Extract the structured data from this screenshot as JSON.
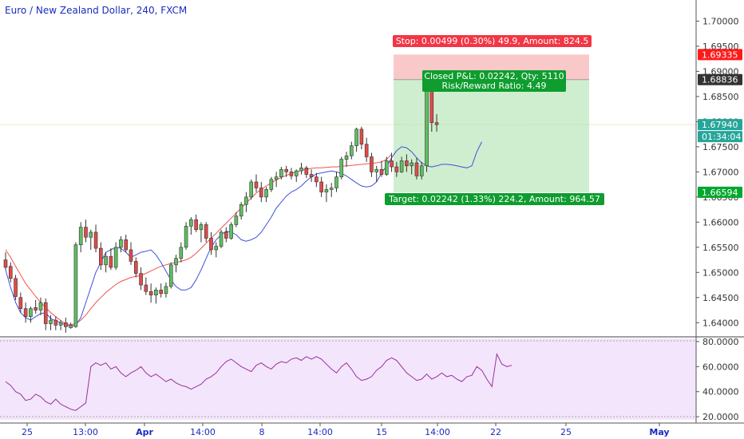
{
  "header": {
    "symbol_title": "Euro / New Zealand Dollar, 240, FXCM"
  },
  "chart_data": {
    "type": "candlestick",
    "price_axis": {
      "range": [
        1.6375,
        1.7042
      ],
      "ticks": [
        "1.70000",
        "1.69500",
        "1.69000",
        "1.68500",
        "1.68000",
        "1.67500",
        "1.67000",
        "1.66500",
        "1.66000",
        "1.65500",
        "1.65000",
        "1.64500",
        "1.64000"
      ],
      "tick_values": [
        1.7,
        1.695,
        1.69,
        1.685,
        1.68,
        1.675,
        1.67,
        1.665,
        1.66,
        1.655,
        1.65,
        1.645,
        1.64
      ]
    },
    "rsi_axis": {
      "range": [
        17.5,
        82.5
      ],
      "ticks": [
        "80.0000",
        "60.0000",
        "40.0000",
        "20.0000"
      ],
      "tick_values": [
        80,
        60,
        40,
        20
      ]
    },
    "time_axis": {
      "labels": [
        "25",
        "13:00",
        "Apr",
        "14:00",
        "8",
        "14:00",
        "15",
        "14:00",
        "22",
        "25",
        "May"
      ],
      "bold": [
        false,
        false,
        true,
        false,
        false,
        false,
        false,
        false,
        false,
        false,
        true
      ]
    },
    "price_labels": [
      {
        "text": "1.69335",
        "value": 1.69335,
        "color": "#ff1a1a"
      },
      {
        "text": "1.68836",
        "value": 1.68836,
        "color": "#333333"
      },
      {
        "text": "1.67940",
        "value": 1.6794,
        "color": "#26a69a"
      },
      {
        "text": "01:34:04",
        "value": 1.6776,
        "color": "#26a69a"
      },
      {
        "text": "1.66594",
        "value": 1.66594,
        "color": "#00a82d"
      }
    ],
    "position": {
      "entry": 1.68836,
      "stop": 1.69335,
      "target": 1.66594,
      "stop_label": "Stop: 0.00499 (0.30%) 49.9, Amount: 824.5",
      "pnl_label": "Closed P&L: 0.02242, Qty: 5110",
      "rr_label": "Risk/Reward Ratio: 4.49",
      "target_label": "Target: 0.02242 (1.33%) 224.2, Amount: 964.57"
    },
    "last_price": 1.6794,
    "candles": [
      [
        1.6525,
        1.654,
        1.6505,
        1.651
      ],
      [
        1.6512,
        1.652,
        1.648,
        1.6488
      ],
      [
        1.6488,
        1.6495,
        1.6445,
        1.6452
      ],
      [
        1.645,
        1.646,
        1.642,
        1.6428
      ],
      [
        1.6428,
        1.644,
        1.64,
        1.6412
      ],
      [
        1.6412,
        1.6432,
        1.64,
        1.6428
      ],
      [
        1.643,
        1.6445,
        1.6418,
        1.6425
      ],
      [
        1.6425,
        1.645,
        1.6415,
        1.644
      ],
      [
        1.644,
        1.6448,
        1.6385,
        1.6398
      ],
      [
        1.6398,
        1.6415,
        1.6385,
        1.6405
      ],
      [
        1.6405,
        1.6412,
        1.6385,
        1.6395
      ],
      [
        1.6395,
        1.6405,
        1.6385,
        1.64
      ],
      [
        1.64,
        1.641,
        1.638,
        1.6392
      ],
      [
        1.639,
        1.64,
        1.6388,
        1.6395
      ],
      [
        1.6392,
        1.656,
        1.639,
        1.6555
      ],
      [
        1.6555,
        1.66,
        1.654,
        1.659
      ],
      [
        1.659,
        1.6605,
        1.656,
        1.657
      ],
      [
        1.657,
        1.6585,
        1.6545,
        1.658
      ],
      [
        1.658,
        1.6595,
        1.654,
        1.6548
      ],
      [
        1.6548,
        1.656,
        1.6505,
        1.6515
      ],
      [
        1.6515,
        1.654,
        1.65,
        1.6532
      ],
      [
        1.6532,
        1.6548,
        1.6505,
        1.651
      ],
      [
        1.651,
        1.656,
        1.6505,
        1.655
      ],
      [
        1.655,
        1.6572,
        1.654,
        1.6565
      ],
      [
        1.6565,
        1.6575,
        1.654,
        1.6545
      ],
      [
        1.6545,
        1.656,
        1.6515,
        1.6522
      ],
      [
        1.6522,
        1.653,
        1.649,
        1.6498
      ],
      [
        1.6498,
        1.651,
        1.6465,
        1.6475
      ],
      [
        1.6475,
        1.649,
        1.6455,
        1.6462
      ],
      [
        1.6462,
        1.6478,
        1.644,
        1.6455
      ],
      [
        1.6455,
        1.647,
        1.6438,
        1.6465
      ],
      [
        1.6465,
        1.6478,
        1.645,
        1.6458
      ],
      [
        1.6458,
        1.648,
        1.645,
        1.6472
      ],
      [
        1.6472,
        1.652,
        1.6468,
        1.6515
      ],
      [
        1.6515,
        1.6535,
        1.65,
        1.6528
      ],
      [
        1.6528,
        1.656,
        1.652,
        1.655
      ],
      [
        1.655,
        1.66,
        1.6545,
        1.6592
      ],
      [
        1.6592,
        1.661,
        1.6575,
        1.6605
      ],
      [
        1.6605,
        1.6615,
        1.658,
        1.6585
      ],
      [
        1.6585,
        1.66,
        1.656,
        1.6595
      ],
      [
        1.6595,
        1.66,
        1.656,
        1.6568
      ],
      [
        1.6568,
        1.658,
        1.6535,
        1.6545
      ],
      [
        1.6545,
        1.656,
        1.653,
        1.6552
      ],
      [
        1.6552,
        1.6585,
        1.6548,
        1.658
      ],
      [
        1.658,
        1.659,
        1.656,
        1.6568
      ],
      [
        1.6568,
        1.66,
        1.6565,
        1.6595
      ],
      [
        1.6595,
        1.662,
        1.659,
        1.6612
      ],
      [
        1.6612,
        1.664,
        1.6605,
        1.6635
      ],
      [
        1.6635,
        1.666,
        1.662,
        1.665
      ],
      [
        1.665,
        1.6685,
        1.6645,
        1.668
      ],
      [
        1.668,
        1.6695,
        1.666,
        1.6668
      ],
      [
        1.6668,
        1.668,
        1.664,
        1.665
      ],
      [
        1.665,
        1.667,
        1.664,
        1.6665
      ],
      [
        1.6665,
        1.669,
        1.666,
        1.6685
      ],
      [
        1.6685,
        1.67,
        1.667,
        1.669
      ],
      [
        1.669,
        1.671,
        1.6685,
        1.6705
      ],
      [
        1.6705,
        1.6712,
        1.669,
        1.67
      ],
      [
        1.67,
        1.6708,
        1.6685,
        1.6692
      ],
      [
        1.6692,
        1.6705,
        1.668,
        1.6702
      ],
      [
        1.6702,
        1.6718,
        1.6695,
        1.6708
      ],
      [
        1.6708,
        1.6712,
        1.6688,
        1.6695
      ],
      [
        1.6695,
        1.6705,
        1.668,
        1.669
      ],
      [
        1.669,
        1.6698,
        1.667,
        1.668
      ],
      [
        1.668,
        1.669,
        1.665,
        1.666
      ],
      [
        1.666,
        1.6675,
        1.664,
        1.6665
      ],
      [
        1.6665,
        1.6678,
        1.665,
        1.6668
      ],
      [
        1.6668,
        1.67,
        1.666,
        1.669
      ],
      [
        1.669,
        1.673,
        1.6685,
        1.6725
      ],
      [
        1.6725,
        1.674,
        1.671,
        1.6732
      ],
      [
        1.6732,
        1.676,
        1.6725,
        1.6752
      ],
      [
        1.6752,
        1.6788,
        1.674,
        1.6785
      ],
      [
        1.6785,
        1.679,
        1.6745,
        1.6755
      ],
      [
        1.6755,
        1.6768,
        1.672,
        1.673
      ],
      [
        1.673,
        1.6738,
        1.669,
        1.67
      ],
      [
        1.67,
        1.6712,
        1.668,
        1.6705
      ],
      [
        1.6705,
        1.6722,
        1.669,
        1.6695
      ],
      [
        1.6695,
        1.673,
        1.6692,
        1.6722
      ],
      [
        1.6722,
        1.6738,
        1.67,
        1.671
      ],
      [
        1.671,
        1.672,
        1.669,
        1.67
      ],
      [
        1.67,
        1.673,
        1.6698,
        1.6722
      ],
      [
        1.6722,
        1.6735,
        1.67,
        1.6712
      ],
      [
        1.6712,
        1.6725,
        1.6695,
        1.6718
      ],
      [
        1.6718,
        1.6728,
        1.6685,
        1.6692
      ],
      [
        1.6692,
        1.672,
        1.6685,
        1.6712
      ],
      [
        1.6712,
        1.69,
        1.67,
        1.687
      ],
      [
        1.687,
        1.6885,
        1.678,
        1.6798
      ],
      [
        1.6798,
        1.6815,
        1.678,
        1.6794
      ]
    ],
    "ma_fast": [
      [
        1.6505,
        1.647
      ],
      [
        1.644,
        1.642
      ],
      [
        1.641,
        1.6405
      ],
      [
        1.6412,
        1.6418
      ],
      [
        1.642,
        1.6408
      ],
      [
        1.6404,
        1.64
      ],
      [
        1.6395,
        1.6393
      ],
      [
        1.6395,
        1.641
      ],
      [
        1.644,
        1.647
      ],
      [
        1.65,
        1.652
      ],
      [
        1.654,
        1.6545
      ],
      [
        1.655,
        1.6548
      ],
      [
        1.654,
        1.653
      ],
      [
        1.6535,
        1.654
      ],
      [
        1.6542,
        1.6545
      ],
      [
        1.6535,
        1.652
      ],
      [
        1.6502,
        1.6485
      ],
      [
        1.6472,
        1.6465
      ],
      [
        1.6465,
        1.647
      ],
      [
        1.6485,
        1.6505
      ],
      [
        1.6528,
        1.655
      ],
      [
        1.6565,
        1.6575
      ],
      [
        1.6582,
        1.658
      ],
      [
        1.6575,
        1.6565
      ],
      [
        1.6562,
        1.6565
      ],
      [
        1.657,
        1.658
      ],
      [
        1.6595,
        1.661
      ],
      [
        1.6628,
        1.664
      ],
      [
        1.6652,
        1.666
      ],
      [
        1.6665,
        1.6672
      ],
      [
        1.6682,
        1.669
      ],
      [
        1.6696,
        1.6698
      ],
      [
        1.67,
        1.6702
      ],
      [
        1.67,
        1.6697
      ],
      [
        1.6692,
        1.6685
      ],
      [
        1.6678,
        1.6672
      ],
      [
        1.667,
        1.6672
      ],
      [
        1.668,
        1.6698
      ],
      [
        1.6712,
        1.6728
      ],
      [
        1.6742,
        1.675
      ],
      [
        1.6748,
        1.674
      ],
      [
        1.6728,
        1.6718
      ],
      [
        1.6712,
        1.671
      ],
      [
        1.6712,
        1.6715
      ],
      [
        1.6715,
        1.6714
      ],
      [
        1.6712,
        1.671
      ],
      [
        1.6708,
        1.6712
      ],
      [
        1.674,
        1.676
      ]
    ],
    "ma_slow": [
      [
        1.6545,
        1.653
      ],
      [
        1.6512,
        1.6495
      ],
      [
        1.6478,
        1.6465
      ],
      [
        1.6452,
        1.644
      ],
      [
        1.643,
        1.642
      ],
      [
        1.6412,
        1.6404
      ],
      [
        1.6398,
        1.6396
      ],
      [
        1.6398,
        1.6405
      ],
      [
        1.6415,
        1.6428
      ],
      [
        1.644,
        1.645
      ],
      [
        1.646,
        1.6468
      ],
      [
        1.6476,
        1.6482
      ],
      [
        1.6486,
        1.649
      ],
      [
        1.6492,
        1.6494
      ],
      [
        1.6498,
        1.6503
      ],
      [
        1.6508,
        1.6512
      ],
      [
        1.6515,
        1.6518
      ],
      [
        1.652,
        1.6522
      ],
      [
        1.6525,
        1.653
      ],
      [
        1.6538,
        1.6548
      ],
      [
        1.6558,
        1.6568
      ],
      [
        1.6578,
        1.6588
      ],
      [
        1.6598,
        1.6608
      ],
      [
        1.6618,
        1.6628
      ],
      [
        1.6638,
        1.6648
      ],
      [
        1.6658,
        1.6665
      ],
      [
        1.6672,
        1.6678
      ],
      [
        1.6684,
        1.6689
      ],
      [
        1.6693,
        1.6697
      ],
      [
        1.67,
        1.6703
      ],
      [
        1.6705,
        1.6707
      ],
      [
        1.6708,
        1.6708
      ],
      [
        1.6709,
        1.671
      ],
      [
        1.671,
        1.6711
      ],
      [
        1.6712,
        1.6713
      ],
      [
        1.6714,
        1.6715
      ],
      [
        1.6716,
        1.6717
      ],
      [
        1.6718,
        1.672
      ],
      [
        1.6725,
        1.6735
      ]
    ],
    "rsi": [
      [
        48,
        45
      ],
      [
        40,
        38
      ],
      [
        33,
        34
      ],
      [
        38,
        36
      ],
      [
        32,
        30
      ],
      [
        34,
        30
      ],
      [
        28,
        26
      ],
      [
        25,
        28
      ],
      [
        31,
        60
      ],
      [
        63,
        61
      ],
      [
        63,
        58
      ],
      [
        60,
        55
      ],
      [
        52,
        55
      ],
      [
        57,
        60
      ],
      [
        55,
        52
      ],
      [
        54,
        51
      ],
      [
        48,
        50
      ],
      [
        47,
        45
      ],
      [
        44,
        42
      ],
      [
        44,
        46
      ],
      [
        50,
        52
      ],
      [
        55,
        60
      ],
      [
        64,
        66
      ],
      [
        63,
        60
      ],
      [
        58,
        56
      ],
      [
        61,
        63
      ],
      [
        60,
        58
      ],
      [
        62,
        64
      ],
      [
        63,
        66
      ],
      [
        67,
        65
      ],
      [
        68,
        66
      ],
      [
        68,
        66
      ],
      [
        62,
        58
      ],
      [
        55,
        60
      ],
      [
        63,
        58
      ],
      [
        52,
        49
      ],
      [
        50,
        52
      ],
      [
        57,
        60
      ],
      [
        65,
        67
      ],
      [
        65,
        60
      ],
      [
        55,
        52
      ],
      [
        49,
        50
      ],
      [
        54,
        50
      ],
      [
        52,
        55
      ],
      [
        52,
        53
      ],
      [
        50,
        48
      ],
      [
        52,
        53
      ],
      [
        60,
        57
      ],
      [
        50,
        44
      ],
      [
        70,
        62
      ],
      [
        60,
        61
      ]
    ]
  }
}
